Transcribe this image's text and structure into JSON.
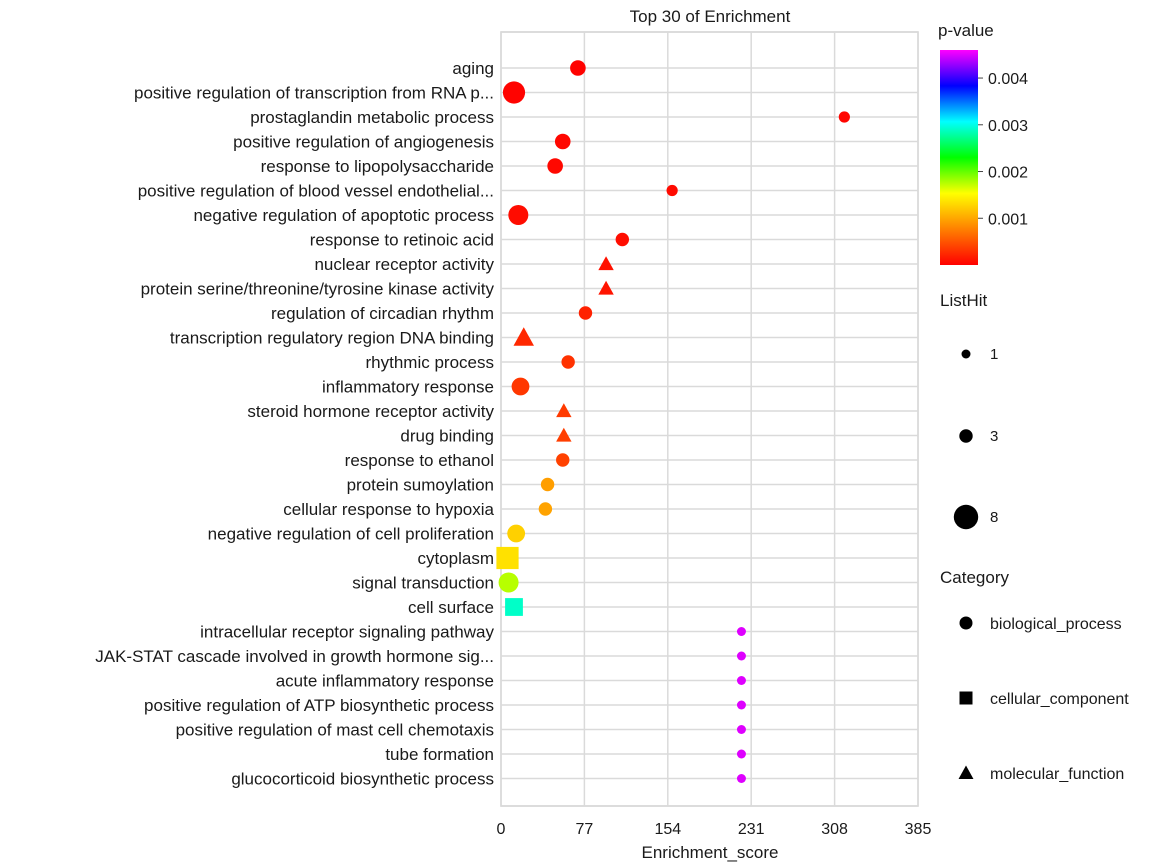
{
  "chart_data": {
    "type": "scatter",
    "title": "Top 30 of  Enrichment",
    "xlabel": "Enrichment_score",
    "ylabel": "",
    "xlim": [
      0,
      385
    ],
    "xticks": [
      0,
      77,
      154,
      231,
      308,
      385
    ],
    "grid": true,
    "categories": [
      "aging",
      "positive regulation of transcription from RNA p...",
      "prostaglandin metabolic process",
      "positive regulation of angiogenesis",
      "response to lipopolysaccharide",
      "positive regulation of blood vessel endothelial...",
      "negative regulation of apoptotic process",
      "response to retinoic acid",
      "nuclear receptor activity",
      "protein serine/threonine/tyrosine kinase activity",
      "regulation of circadian rhythm",
      "transcription regulatory region DNA binding",
      "rhythmic process",
      "inflammatory response",
      "steroid hormone receptor activity",
      "drug binding",
      "response to ethanol",
      "protein sumoylation",
      "cellular response to hypoxia",
      "negative regulation of cell proliferation",
      "cytoplasm",
      "signal transduction",
      "cell surface",
      "intracellular receptor signaling pathway",
      "JAK-STAT cascade involved in growth hormone sig...",
      "acute inflammatory response",
      "positive regulation of ATP biosynthetic process",
      "positive regulation of mast cell chemotaxis",
      "tube formation",
      "glucocorticoid biosynthetic process"
    ],
    "points": [
      {
        "term": "aging",
        "enrichment_score": 71,
        "p_value": 1e-05,
        "list_hit": 4,
        "category": "biological_process"
      },
      {
        "term": "positive regulation of transcription from RNA p...",
        "enrichment_score": 12,
        "p_value": 2e-05,
        "list_hit": 7,
        "category": "biological_process"
      },
      {
        "term": "prostaglandin metabolic process",
        "enrichment_score": 317,
        "p_value": 3e-05,
        "list_hit": 2,
        "category": "biological_process"
      },
      {
        "term": "positive regulation of angiogenesis",
        "enrichment_score": 57,
        "p_value": 4e-05,
        "list_hit": 4,
        "category": "biological_process"
      },
      {
        "term": "response to lipopolysaccharide",
        "enrichment_score": 50,
        "p_value": 5e-05,
        "list_hit": 4,
        "category": "biological_process"
      },
      {
        "term": "positive regulation of blood vessel endothelial...",
        "enrichment_score": 158,
        "p_value": 6e-05,
        "list_hit": 2,
        "category": "biological_process"
      },
      {
        "term": "negative regulation of apoptotic process",
        "enrichment_score": 16,
        "p_value": 7e-05,
        "list_hit": 6,
        "category": "biological_process"
      },
      {
        "term": "response to retinoic acid",
        "enrichment_score": 112,
        "p_value": 8e-05,
        "list_hit": 3,
        "category": "biological_process"
      },
      {
        "term": "nuclear receptor activity",
        "enrichment_score": 97,
        "p_value": 0.0001,
        "list_hit": 3,
        "category": "molecular_function"
      },
      {
        "term": "protein serine/threonine/tyrosine kinase activity",
        "enrichment_score": 97,
        "p_value": 0.00012,
        "list_hit": 3,
        "category": "molecular_function"
      },
      {
        "term": "regulation of circadian rhythm",
        "enrichment_score": 78,
        "p_value": 0.0002,
        "list_hit": 3,
        "category": "biological_process"
      },
      {
        "term": "transcription regulatory region DNA binding",
        "enrichment_score": 21,
        "p_value": 0.00024,
        "list_hit": 5,
        "category": "molecular_function"
      },
      {
        "term": "rhythmic process",
        "enrichment_score": 62,
        "p_value": 0.0003,
        "list_hit": 3,
        "category": "biological_process"
      },
      {
        "term": "inflammatory response",
        "enrichment_score": 18,
        "p_value": 0.00033,
        "list_hit": 5,
        "category": "biological_process"
      },
      {
        "term": "steroid hormone receptor activity",
        "enrichment_score": 58,
        "p_value": 0.00035,
        "list_hit": 3,
        "category": "molecular_function"
      },
      {
        "term": "drug binding",
        "enrichment_score": 58,
        "p_value": 0.00037,
        "list_hit": 3,
        "category": "molecular_function"
      },
      {
        "term": "response to ethanol",
        "enrichment_score": 57,
        "p_value": 0.00039,
        "list_hit": 3,
        "category": "biological_process"
      },
      {
        "term": "protein sumoylation",
        "enrichment_score": 43,
        "p_value": 0.00095,
        "list_hit": 3,
        "category": "biological_process"
      },
      {
        "term": "cellular response to hypoxia",
        "enrichment_score": 41,
        "p_value": 0.00098,
        "list_hit": 3,
        "category": "biological_process"
      },
      {
        "term": "negative regulation of cell proliferation",
        "enrichment_score": 14,
        "p_value": 0.00125,
        "list_hit": 5,
        "category": "biological_process"
      },
      {
        "term": "cytoplasm",
        "enrichment_score": 6,
        "p_value": 0.00135,
        "list_hit": 7,
        "category": "cellular_component"
      },
      {
        "term": "signal transduction",
        "enrichment_score": 7,
        "p_value": 0.00175,
        "list_hit": 6,
        "category": "biological_process"
      },
      {
        "term": "cell surface",
        "enrichment_score": 12,
        "p_value": 0.0029,
        "list_hit": 5,
        "category": "cellular_component"
      },
      {
        "term": "intracellular receptor signaling pathway",
        "enrichment_score": 222,
        "p_value": 0.0045,
        "list_hit": 1,
        "category": "biological_process"
      },
      {
        "term": "JAK-STAT cascade involved in growth hormone sig...",
        "enrichment_score": 222,
        "p_value": 0.0045,
        "list_hit": 1,
        "category": "biological_process"
      },
      {
        "term": "acute inflammatory response",
        "enrichment_score": 222,
        "p_value": 0.0045,
        "list_hit": 1,
        "category": "biological_process"
      },
      {
        "term": "positive regulation of ATP biosynthetic process",
        "enrichment_score": 222,
        "p_value": 0.0045,
        "list_hit": 1,
        "category": "biological_process"
      },
      {
        "term": "positive regulation of mast cell chemotaxis",
        "enrichment_score": 222,
        "p_value": 0.0045,
        "list_hit": 1,
        "category": "biological_process"
      },
      {
        "term": "tube formation",
        "enrichment_score": 222,
        "p_value": 0.0045,
        "list_hit": 1,
        "category": "biological_process"
      },
      {
        "term": "glucocorticoid biosynthetic process",
        "enrichment_score": 222,
        "p_value": 0.0045,
        "list_hit": 1,
        "category": "biological_process"
      }
    ],
    "color_legend": {
      "title": "p-value",
      "ticks": [
        "0.001",
        "0.002",
        "0.003",
        "0.004"
      ],
      "tick_values": [
        0.001,
        0.002,
        0.003,
        0.004
      ],
      "range": [
        0,
        0.0046
      ],
      "colors": [
        "#ff0000",
        "#ff8000",
        "#ffff00",
        "#00ff00",
        "#00ffff",
        "#0000ff",
        "#ff00ff"
      ]
    },
    "size_legend": {
      "title": "ListHit",
      "labels": [
        "1",
        "3",
        "8"
      ]
    },
    "shape_legend": {
      "title": "Category",
      "items": [
        {
          "label": "biological_process",
          "shape": "circle"
        },
        {
          "label": "cellular_component",
          "shape": "square"
        },
        {
          "label": "molecular_function",
          "shape": "triangle"
        }
      ]
    }
  }
}
